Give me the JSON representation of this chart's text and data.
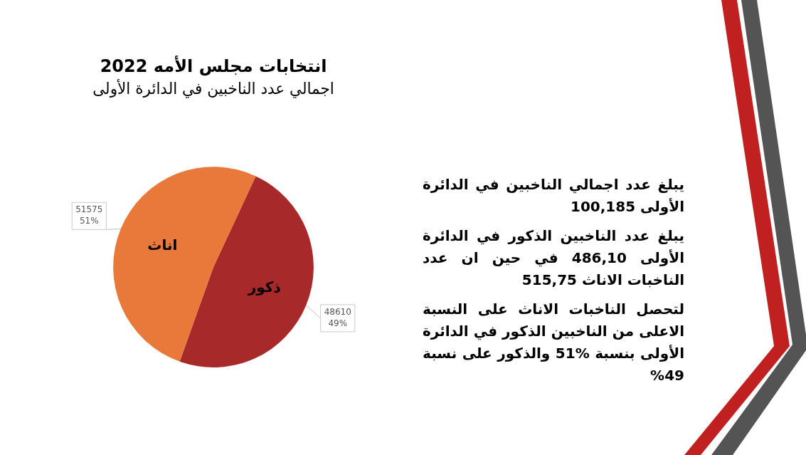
{
  "chart_data": {
    "type": "pie",
    "title": "انتخابات مجلس الأمه 2022",
    "subtitle": "اجمالي عدد الناخبين في الدائرة الأولى",
    "categories": [
      "ذكور",
      "اناث"
    ],
    "values": [
      48610,
      51575
    ],
    "colors": [
      "#a8292a",
      "#e8793b"
    ],
    "value_labels": [
      "48610\n49%",
      "51575\n51%"
    ],
    "annotations": [
      "يبلغ عدد اجمالي الناخبين في الدائرة الأولى 100,185",
      "يبلغ عدد الناخبين الذكور في الدائرة الأولى 486,10 في حين ان عدد الناخبات الاناث 515,75",
      "لتحصل الناخبات الاناث على النسبة الاعلى من الناخبين الذكور في الدائرة الأولى بنسبة %51 والذكور على نسبة 49%"
    ]
  }
}
